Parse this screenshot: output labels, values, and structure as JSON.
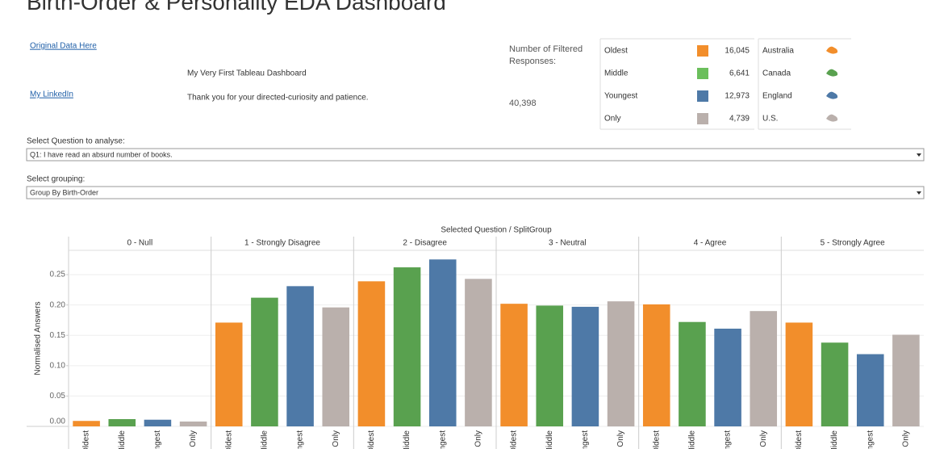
{
  "header": {
    "title": "Birth-Order & Personality EDA Dashboard"
  },
  "links": [
    "Original Data Here",
    "My LinkedIn"
  ],
  "notes": [
    "My Very First Tableau Dashboard",
    "Thank you for your directed-curiosity and patience."
  ],
  "responses": {
    "label": "Number of Filtered Responses:",
    "value": "40,398"
  },
  "birth_order_legend": [
    {
      "label": "Oldest",
      "color": "#f28e2b",
      "count": "16,045"
    },
    {
      "label": "Middle",
      "color": "#6bbf5c",
      "count": "6,641"
    },
    {
      "label": "Youngest",
      "color": "#4e79a7",
      "count": "12,973"
    },
    {
      "label": "Only",
      "color": "#bab0ac",
      "count": "4,739"
    }
  ],
  "country_legend": [
    {
      "label": "Australia",
      "color": "#f28e2b"
    },
    {
      "label": "Canada",
      "color": "#59a14f"
    },
    {
      "label": "England",
      "color": "#4e79a7"
    },
    {
      "label": "U.S.",
      "color": "#bab0ac"
    }
  ],
  "filters": [
    {
      "label": "Select Question to analyse:",
      "value": "Q1: I have read an absurd number of books."
    },
    {
      "label": "Select grouping:",
      "value": "Group By Birth-Order"
    }
  ],
  "chart_data": {
    "type": "bar",
    "title": "Selected Question / SplitGroup",
    "ylabel": "Normalised Answers",
    "categories": [
      "0 - Null",
      "1 - Strongly Disagree",
      "2 - Disagree",
      "3 - Neutral",
      "4 - Agree",
      "5 - Strongly Agree"
    ],
    "series": [
      {
        "name": "Oldest",
        "color": "#f28e2b",
        "values": [
          0.009,
          0.171,
          0.239,
          0.202,
          0.201,
          0.171
        ]
      },
      {
        "name": "Middle",
        "color": "#59a14f",
        "values": [
          0.012,
          0.212,
          0.262,
          0.199,
          0.172,
          0.138
        ]
      },
      {
        "name": "Youngest",
        "color": "#4e79a7",
        "values": [
          0.011,
          0.231,
          0.275,
          0.197,
          0.161,
          0.119
        ]
      },
      {
        "name": "Only",
        "color": "#bab0ac",
        "values": [
          0.008,
          0.196,
          0.243,
          0.206,
          0.19,
          0.151
        ]
      }
    ],
    "ylim": [
      0,
      0.29
    ],
    "yticks": [
      {
        "value": 0,
        "label": "0.00"
      },
      0.05,
      {
        "value": 0.1,
        "label": "0.10"
      },
      0.15,
      {
        "value": 0.2,
        "label": "0.20"
      },
      0.25
    ],
    "grid": true
  }
}
